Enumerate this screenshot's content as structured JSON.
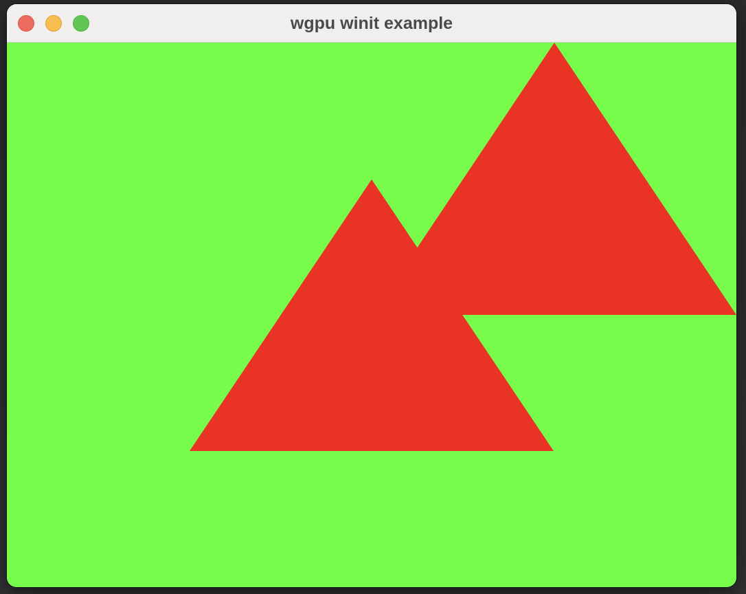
{
  "window": {
    "title": "wgpu winit example"
  },
  "controls": {
    "close": "close-icon",
    "minimize": "minimize-icon",
    "zoom": "zoom-icon"
  },
  "canvas": {
    "clear_color": "#77fc4c",
    "shape_color": "#e93325",
    "shape_count": 2
  }
}
